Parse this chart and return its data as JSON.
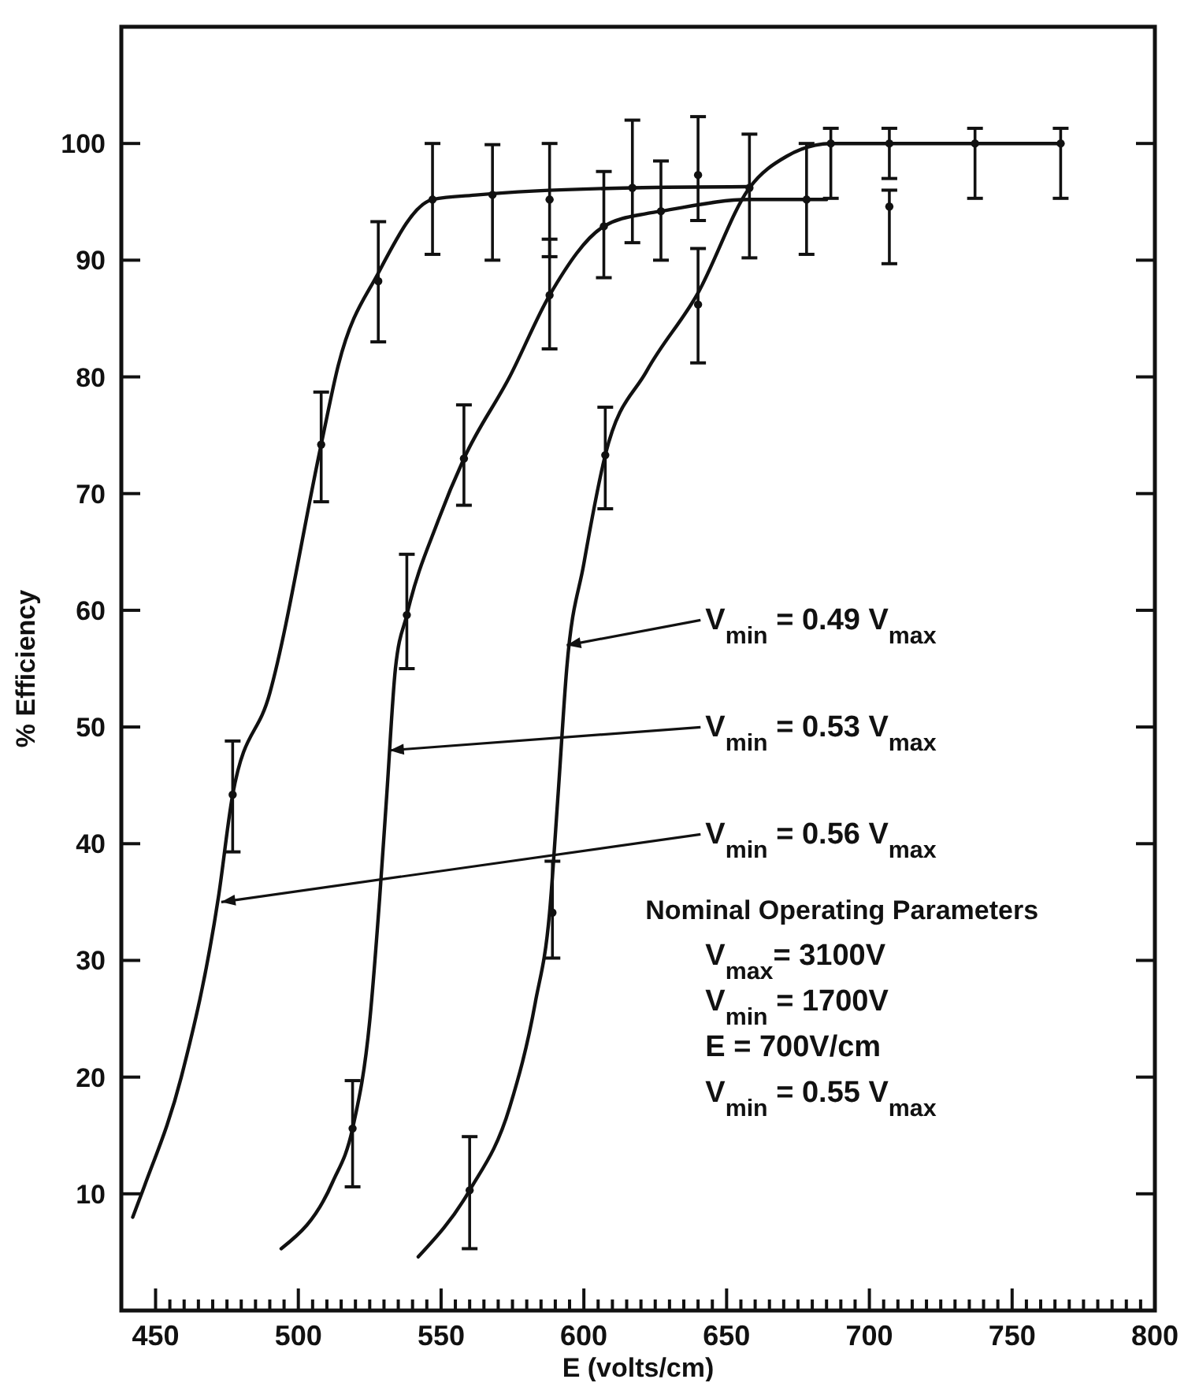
{
  "chart_data": {
    "type": "line",
    "xlabel": "E (volts/cm)",
    "ylabel": "% Efficiency",
    "xlim": [
      438,
      800
    ],
    "ylim": [
      0,
      110
    ],
    "xticks": [
      450,
      {
        "value": 455,
        "label": null
      },
      {
        "value": 460,
        "label": null
      },
      {
        "value": 465,
        "label": null
      },
      {
        "value": 470,
        "label": null
      },
      {
        "value": 475,
        "label": null
      },
      {
        "value": 480,
        "label": null
      },
      {
        "value": 485,
        "label": null
      },
      {
        "value": 490,
        "label": null
      },
      {
        "value": 495,
        "label": null
      },
      500,
      {
        "value": 505,
        "label": null
      },
      {
        "value": 510,
        "label": null
      },
      {
        "value": 515,
        "label": null
      },
      {
        "value": 520,
        "label": null
      },
      {
        "value": 525,
        "label": null
      },
      {
        "value": 530,
        "label": null
      },
      {
        "value": 535,
        "label": null
      },
      {
        "value": 540,
        "label": null
      },
      {
        "value": 545,
        "label": null
      },
      550,
      {
        "value": 555,
        "label": null
      },
      {
        "value": 560,
        "label": null
      },
      {
        "value": 565,
        "label": null
      },
      {
        "value": 570,
        "label": null
      },
      {
        "value": 575,
        "label": null
      },
      {
        "value": 580,
        "label": null
      },
      {
        "value": 585,
        "label": null
      },
      {
        "value": 590,
        "label": null
      },
      {
        "value": 595,
        "label": null
      },
      600,
      {
        "value": 605,
        "label": null
      },
      {
        "value": 610,
        "label": null
      },
      {
        "value": 615,
        "label": null
      },
      {
        "value": 620,
        "label": null
      },
      {
        "value": 625,
        "label": null
      },
      {
        "value": 630,
        "label": null
      },
      {
        "value": 635,
        "label": null
      },
      {
        "value": 640,
        "label": null
      },
      {
        "value": 645,
        "label": null
      },
      650,
      {
        "value": 655,
        "label": null
      },
      {
        "value": 660,
        "label": null
      },
      {
        "value": 665,
        "label": null
      },
      {
        "value": 670,
        "label": null
      },
      {
        "value": 675,
        "label": null
      },
      {
        "value": 680,
        "label": null
      },
      {
        "value": 685,
        "label": null
      },
      {
        "value": 690,
        "label": null
      },
      {
        "value": 695,
        "label": null
      },
      700,
      {
        "value": 705,
        "label": null
      },
      {
        "value": 710,
        "label": null
      },
      {
        "value": 715,
        "label": null
      },
      {
        "value": 720,
        "label": null
      },
      {
        "value": 725,
        "label": null
      },
      {
        "value": 730,
        "label": null
      },
      {
        "value": 735,
        "label": null
      },
      {
        "value": 740,
        "label": null
      },
      {
        "value": 745,
        "label": null
      },
      750,
      {
        "value": 755,
        "label": null
      },
      {
        "value": 760,
        "label": null
      },
      {
        "value": 765,
        "label": null
      },
      {
        "value": 770,
        "label": null
      },
      {
        "value": 775,
        "label": null
      },
      {
        "value": 780,
        "label": null
      },
      {
        "value": 785,
        "label": null
      },
      {
        "value": 790,
        "label": null
      },
      {
        "value": 795,
        "label": null
      },
      800
    ],
    "yticks": [
      10,
      20,
      30,
      40,
      50,
      60,
      70,
      80,
      90,
      100
    ],
    "grid": false,
    "line_style": "solid",
    "series": [
      {
        "color": "#111111",
        "marker": "none",
        "x": [
          442,
          446,
          459,
          472,
          477,
          490,
          508,
          514,
          528,
          547,
          563,
          617,
          658
        ],
        "values": [
          8,
          10.6,
          20,
          35.4,
          44.2,
          52.9,
          74.2,
          81,
          88.9,
          95.2,
          95.6,
          96.2,
          96.3
        ]
      },
      {
        "color": "#111111",
        "marker": "none",
        "x": [
          494,
          512,
          519,
          525,
          528.5,
          531,
          534,
          538,
          549,
          558,
          574,
          588,
          607,
          622,
          627,
          658,
          685
        ],
        "values": [
          5.3,
          11,
          15.6,
          24.8,
          35.4,
          44.3,
          55,
          59.6,
          67.7,
          73,
          80,
          87,
          92.9,
          94,
          94.2,
          95.2,
          95.2
        ]
      },
      {
        "color": "#111111",
        "marker": "none",
        "x": [
          542,
          560,
          574,
          583,
          588,
          591,
          594,
          600,
          607.5,
          622,
          640,
          658,
          671,
          686.5,
          767
        ],
        "values": [
          4.6,
          10.3,
          17.4,
          26.4,
          34.1,
          44.3,
          55,
          64,
          73.3,
          80.5,
          87.2,
          96.2,
          98.9,
          100,
          100
        ]
      },
      {
        "type": "scatter",
        "color": "#111111",
        "marker": "circle",
        "x": [
          477,
          508,
          528,
          547,
          568,
          588,
          617,
          640,
          658
        ],
        "values": [
          44.2,
          74.2,
          88.2,
          95.2,
          95.6,
          95.2,
          96.2,
          97.3,
          96.2
        ],
        "errors": [
          [
            39.3,
            48.8
          ],
          [
            69.3,
            78.7
          ],
          [
            83,
            93.3
          ],
          [
            90.5,
            100
          ],
          [
            90,
            99.9
          ],
          [
            90.3,
            100
          ],
          [
            91.5,
            102
          ],
          [
            93.4,
            102.3
          ],
          [
            90.2,
            100.8
          ]
        ]
      },
      {
        "type": "scatter",
        "color": "#111111",
        "marker": "circle",
        "x": [
          519,
          538,
          558,
          588,
          607,
          627,
          678
        ],
        "values": [
          15.6,
          59.6,
          73,
          87,
          92.9,
          94.2,
          95.2
        ],
        "errors": [
          [
            10.6,
            19.7
          ],
          [
            55,
            64.8
          ],
          [
            69,
            77.6
          ],
          [
            82.4,
            91.8
          ],
          [
            88.5,
            97.6
          ],
          [
            90,
            98.5
          ],
          [
            90.5,
            100
          ]
        ]
      },
      {
        "type": "scatter",
        "color": "#111111",
        "marker": "circle",
        "x": [
          560,
          589,
          607.5,
          640,
          686.5,
          707,
          707,
          737,
          767
        ],
        "values": [
          10.3,
          34.1,
          73.3,
          86.2,
          100,
          100,
          94.6,
          100,
          100
        ],
        "errors": [
          [
            5.3,
            14.9
          ],
          [
            30.2,
            38.5
          ],
          [
            68.7,
            77.4
          ],
          [
            81.2,
            91
          ],
          [
            95.3,
            101.3
          ],
          [
            97,
            101.3
          ],
          [
            89.7,
            96
          ],
          [
            95.3,
            101.3
          ],
          [
            95.3,
            101.3
          ]
        ]
      }
    ],
    "annotations": [
      {
        "text": "V$_{min}$ = 0.49 V$_{max}$",
        "x": 594,
        "y": 57
      },
      {
        "text": "V$_{min}$ = 0.53 V$_{max}$",
        "x": 532,
        "y": 48
      },
      {
        "text": "V$_{min}$ = 0.56 V$_{max}$",
        "x": 473,
        "y": 35
      },
      "Nominal Operating Parameters",
      "V$_{max}$= 3100V",
      "V$_{min}$ = 1700V",
      "E = 700V/cm",
      "V$_{min}$ = 0.55 V$_{max}$"
    ]
  }
}
